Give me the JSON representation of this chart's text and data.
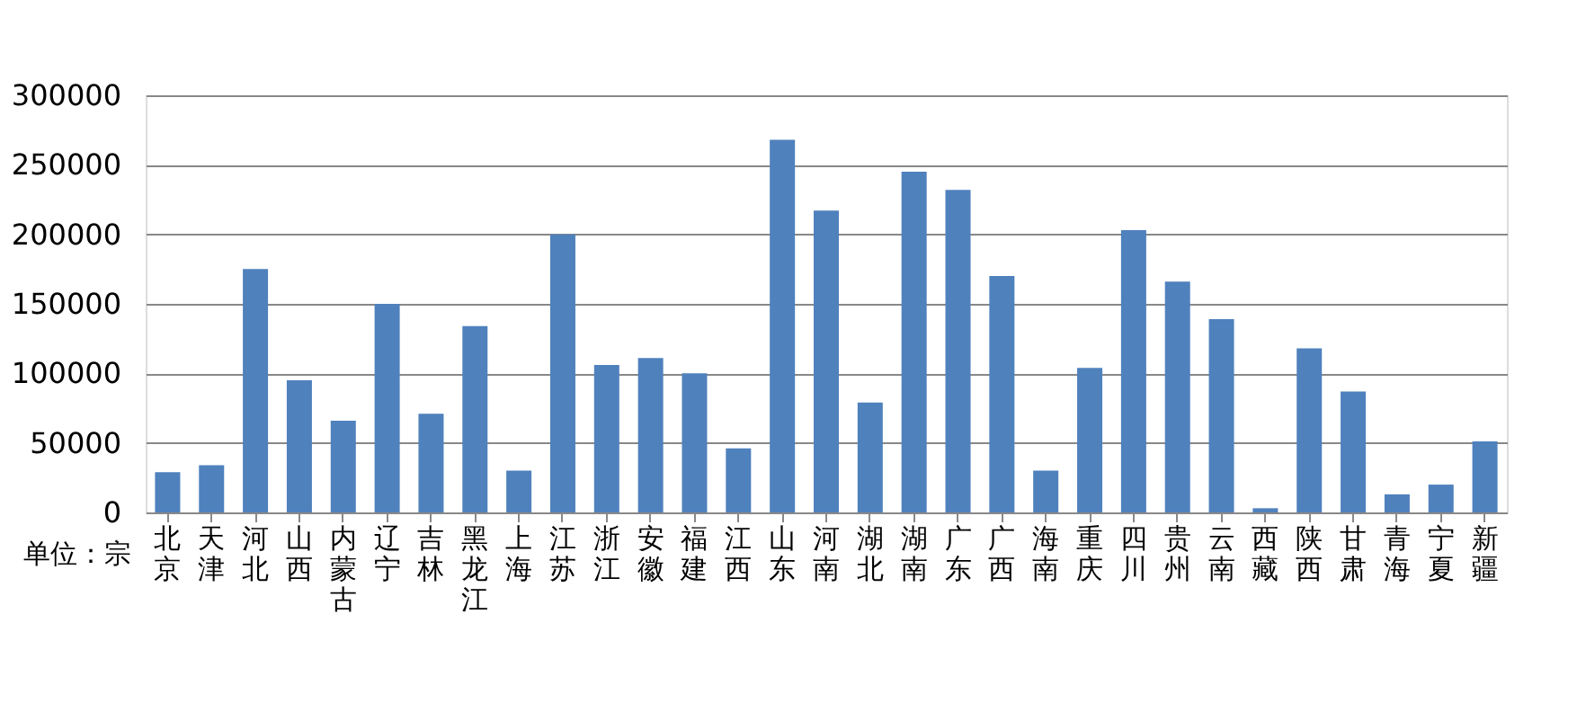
{
  "chart_data": {
    "type": "bar",
    "categories": [
      "北京",
      "天津",
      "河北",
      "山西",
      "内蒙古",
      "辽宁",
      "吉林",
      "黑龙江",
      "上海",
      "江苏",
      "浙江",
      "安徽",
      "福建",
      "江西",
      "山东",
      "河南",
      "湖北",
      "湖南",
      "广东",
      "广西",
      "海南",
      "重庆",
      "四川",
      "贵州",
      "云南",
      "西藏",
      "陕西",
      "甘肃",
      "青海",
      "宁夏",
      "新疆"
    ],
    "values": [
      29000,
      34000,
      175000,
      95000,
      66000,
      150000,
      71000,
      134000,
      30000,
      200000,
      106000,
      111000,
      100000,
      46000,
      268000,
      217000,
      79000,
      245000,
      232000,
      170000,
      30000,
      104000,
      203000,
      166000,
      139000,
      3000,
      118000,
      87000,
      13000,
      20000,
      51000
    ],
    "color": "#4f81bd",
    "ylim": [
      0,
      300000
    ],
    "yticks": [
      0,
      50000,
      100000,
      150000,
      200000,
      250000,
      300000
    ],
    "grid": "y",
    "annotations": [
      "单位：宗"
    ]
  }
}
